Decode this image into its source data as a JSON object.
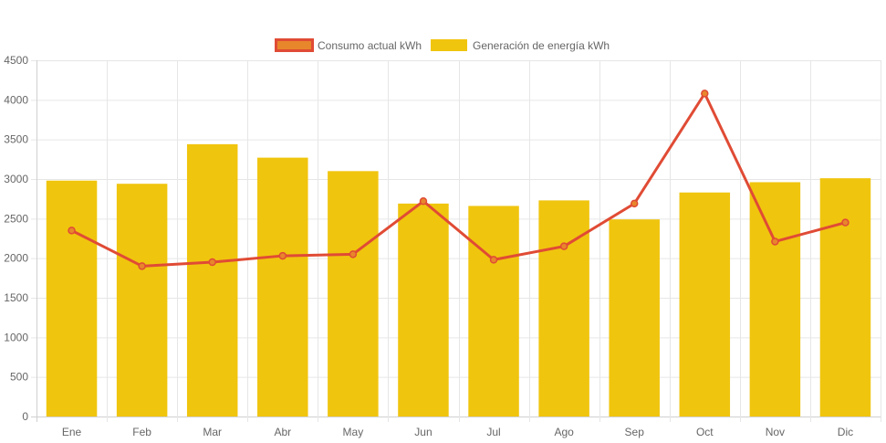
{
  "chart_data": {
    "type": "bar",
    "categories": [
      "Ene",
      "Feb",
      "Mar",
      "Abr",
      "May",
      "Jun",
      "Jul",
      "Ago",
      "Sep",
      "Oct",
      "Nov",
      "Dic"
    ],
    "series": [
      {
        "name": "Consumo actual kWh",
        "type": "line",
        "values": [
          2350,
          1900,
          1950,
          2030,
          2050,
          2720,
          1980,
          2150,
          2690,
          4080,
          2210,
          2450
        ],
        "color": "#e04b35",
        "point_color": "#e8862c"
      },
      {
        "name": "Generación de energía kWh",
        "type": "bar",
        "values": [
          2980,
          2940,
          3440,
          3270,
          3100,
          2690,
          2660,
          2730,
          2490,
          2830,
          2960,
          3010
        ],
        "color": "#f0c50e"
      }
    ],
    "y_ticks": [
      "0",
      "500",
      "1000",
      "1500",
      "2000",
      "2500",
      "3000",
      "3500",
      "4000",
      "4500"
    ],
    "ylim": [
      0,
      4500
    ],
    "title": "",
    "xlabel": "",
    "ylabel": "",
    "grid": true,
    "legend_position": "top-center"
  }
}
